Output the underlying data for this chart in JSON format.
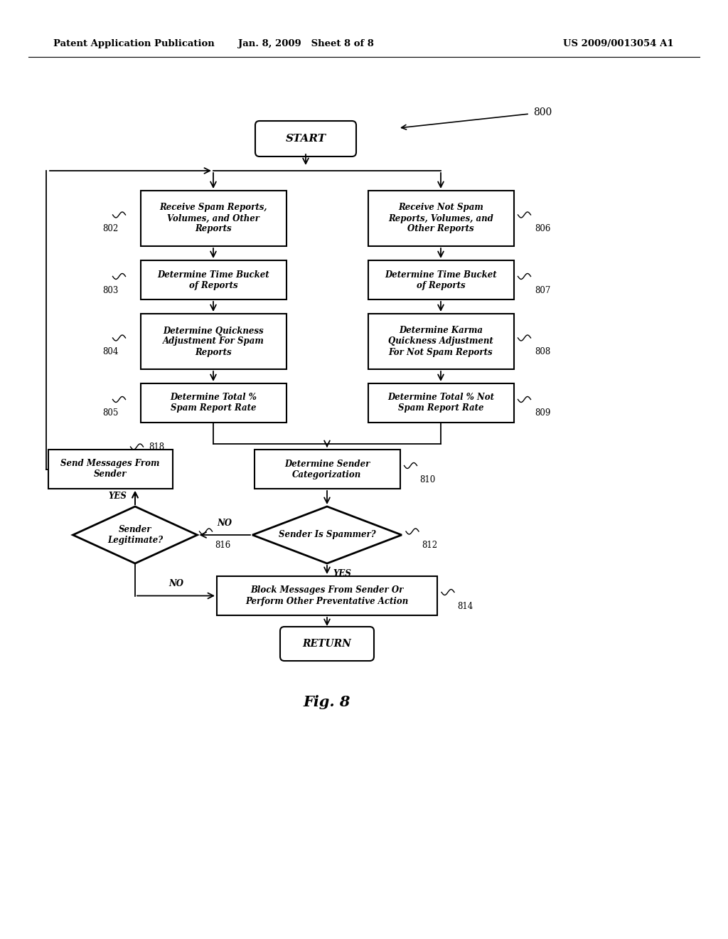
{
  "bg_color": "#ffffff",
  "header_left": "Patent Application Publication",
  "header_mid": "Jan. 8, 2009   Sheet 8 of 8",
  "header_right": "US 2009/0013054 A1",
  "fig_label": "Fig. 8"
}
